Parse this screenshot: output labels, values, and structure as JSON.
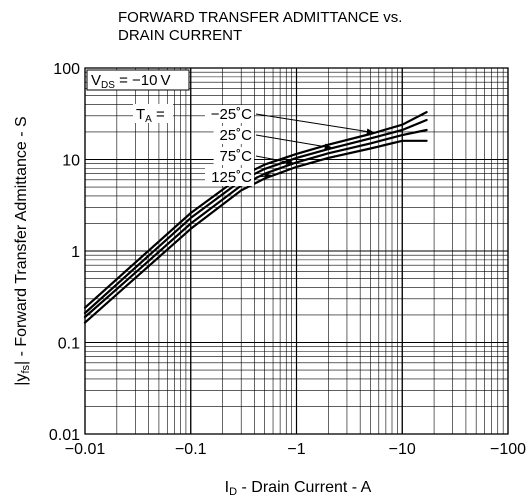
{
  "chart_data": {
    "type": "line",
    "title_lines": [
      "FORWARD TRANSFER ADMITTANCE vs.",
      "DRAIN CURRENT"
    ],
    "xlabel": {
      "main": "I",
      "sub": "D",
      "rest": " - Drain Current - A"
    },
    "ylabel": {
      "pre": "|y",
      "sub": "fs",
      "rest": "| - Forward Transfer Admittance - S"
    },
    "x_axis": {
      "scale": "log",
      "reversed_sign": true,
      "range": [
        -0.01,
        -100
      ],
      "ticks": [
        -0.01,
        -0.1,
        -1,
        -10,
        -100
      ],
      "tick_labels": [
        "−0.01",
        "−0.1",
        "−1",
        "−10",
        "−100"
      ]
    },
    "y_axis": {
      "scale": "log",
      "range": [
        0.01,
        100
      ],
      "ticks": [
        0.01,
        0.1,
        1,
        10,
        100
      ],
      "tick_labels": [
        "0.01",
        "0.1",
        "1",
        "10",
        "100"
      ]
    },
    "grid": true,
    "condition": {
      "main": "V",
      "sub": "DS",
      "rest": " = −10 V"
    },
    "legend_prefix": {
      "main": "T",
      "sub": "A",
      "rest": " ="
    },
    "series": [
      {
        "name": "−25˚C",
        "x": [
          -0.01,
          -0.03,
          -0.1,
          -0.3,
          -0.5,
          -1,
          -2,
          -5,
          -10,
          -17
        ],
        "y": [
          0.24,
          0.75,
          2.6,
          6.6,
          8.8,
          11.5,
          14.5,
          19,
          24,
          33
        ]
      },
      {
        "name": "25˚C",
        "x": [
          -0.01,
          -0.03,
          -0.1,
          -0.3,
          -0.5,
          -1,
          -2,
          -5,
          -10,
          -17
        ],
        "y": [
          0.21,
          0.66,
          2.3,
          5.9,
          7.9,
          10.4,
          13,
          17,
          21,
          27
        ]
      },
      {
        "name": "75˚C",
        "x": [
          -0.01,
          -0.03,
          -0.1,
          -0.3,
          -0.5,
          -1,
          -2,
          -5,
          -10,
          -17
        ],
        "y": [
          0.19,
          0.58,
          2.0,
          5.2,
          7.0,
          9.3,
          11.7,
          15,
          18.5,
          21
        ]
      },
      {
        "name": "125˚C",
        "x": [
          -0.01,
          -0.03,
          -0.1,
          -0.3,
          -0.5,
          -1,
          -2,
          -5,
          -10,
          -17
        ],
        "y": [
          0.165,
          0.51,
          1.75,
          4.6,
          6.2,
          8.3,
          10.4,
          13.2,
          16,
          16
        ]
      }
    ]
  }
}
